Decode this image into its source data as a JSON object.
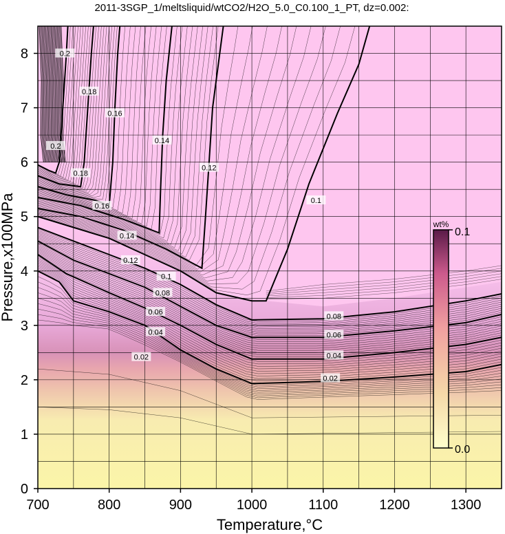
{
  "chart_data": {
    "type": "heatmap",
    "title": "2011-3SGP_1/meltsliquid/wtCO2/H2O_5.0_C0.100_1_PT, dz=0.002:",
    "xlabel": "Temperature,°C",
    "ylabel": "Pressure,x100MPa",
    "xlim": [
      700,
      1350
    ],
    "ylim": [
      0,
      8.5
    ],
    "x_ticks": [
      "700",
      "800",
      "900",
      "1000",
      "1100",
      "1200",
      "1300"
    ],
    "y_ticks": [
      "0",
      "1",
      "2",
      "3",
      "4",
      "5",
      "6",
      "7",
      "8"
    ],
    "grid": true,
    "colorbar": {
      "unit": "wt%",
      "min_label": "0.0",
      "max_label": "0.1",
      "range": [
        0.0,
        0.1
      ],
      "placement": "right-inside",
      "colors": [
        "#ffffcc",
        "#f5d8a8",
        "#f0a0a0",
        "#cc5a8c",
        "#5a1a48"
      ]
    },
    "background_color": "#fec6ef",
    "low_color": "#fbf5a8",
    "contour_interval": 0.002,
    "major_contours": [
      {
        "label": "0.02",
        "points": [
          [
            700,
            4.0
          ],
          [
            730,
            3.8
          ],
          [
            750,
            3.45
          ],
          [
            800,
            3.25
          ],
          [
            850,
            3.0
          ],
          [
            900,
            2.55
          ],
          [
            950,
            2.2
          ],
          [
            1000,
            1.93
          ],
          [
            1100,
            1.97
          ],
          [
            1200,
            2.05
          ],
          [
            1300,
            2.15
          ],
          [
            1350,
            2.28
          ]
        ],
        "label_at": [
          [
            845,
            2.42
          ],
          [
            1110,
            2.03
          ]
        ]
      },
      {
        "label": "0.04",
        "points": [
          [
            700,
            4.3
          ],
          [
            740,
            3.95
          ],
          [
            800,
            3.6
          ],
          [
            850,
            3.32
          ],
          [
            900,
            3.0
          ],
          [
            950,
            2.65
          ],
          [
            1000,
            2.38
          ],
          [
            1100,
            2.38
          ],
          [
            1200,
            2.5
          ],
          [
            1300,
            2.65
          ],
          [
            1350,
            2.78
          ]
        ],
        "label_at": [
          [
            865,
            2.88
          ],
          [
            1115,
            2.45
          ]
        ]
      },
      {
        "label": "0.06",
        "points": [
          [
            700,
            4.55
          ],
          [
            750,
            4.2
          ],
          [
            800,
            3.95
          ],
          [
            850,
            3.7
          ],
          [
            900,
            3.35
          ],
          [
            950,
            3.0
          ],
          [
            1000,
            2.78
          ],
          [
            1100,
            2.78
          ],
          [
            1200,
            2.9
          ],
          [
            1300,
            3.05
          ],
          [
            1350,
            3.2
          ]
        ],
        "label_at": [
          [
            865,
            3.25
          ],
          [
            1115,
            2.83
          ]
        ]
      },
      {
        "label": "0.08",
        "points": [
          [
            700,
            4.8
          ],
          [
            750,
            4.55
          ],
          [
            800,
            4.3
          ],
          [
            850,
            4.05
          ],
          [
            900,
            3.75
          ],
          [
            950,
            3.38
          ],
          [
            1000,
            3.1
          ],
          [
            1100,
            3.12
          ],
          [
            1200,
            3.25
          ],
          [
            1300,
            3.45
          ],
          [
            1350,
            3.58
          ]
        ],
        "label_at": [
          [
            875,
            3.6
          ],
          [
            1115,
            3.17
          ]
        ]
      },
      {
        "label": "0.1",
        "points": [
          [
            700,
            5.0
          ],
          [
            750,
            4.8
          ],
          [
            800,
            4.6
          ],
          [
            850,
            4.3
          ],
          [
            900,
            4.0
          ],
          [
            950,
            3.6
          ],
          [
            1000,
            3.45
          ],
          [
            1020,
            3.45
          ],
          [
            1050,
            4.4
          ],
          [
            1080,
            5.6
          ],
          [
            1120,
            6.9
          ],
          [
            1150,
            7.8
          ],
          [
            1165,
            8.5
          ]
        ],
        "label_at": [
          [
            880,
            3.9
          ],
          [
            1090,
            5.3
          ]
        ]
      },
      {
        "label": "0.12",
        "points": [
          [
            700,
            5.15
          ],
          [
            760,
            5.0
          ],
          [
            820,
            4.75
          ],
          [
            880,
            4.4
          ],
          [
            930,
            4.05
          ],
          [
            935,
            5.0
          ],
          [
            940,
            6.0
          ],
          [
            945,
            7.0
          ],
          [
            955,
            8.0
          ],
          [
            960,
            8.5
          ]
        ],
        "label_at": [
          [
            830,
            4.2
          ],
          [
            940,
            5.9
          ]
        ]
      },
      {
        "label": "0.14",
        "points": [
          [
            700,
            5.35
          ],
          [
            760,
            5.2
          ],
          [
            820,
            4.95
          ],
          [
            870,
            4.7
          ],
          [
            872,
            5.5
          ],
          [
            875,
            6.5
          ],
          [
            880,
            7.5
          ],
          [
            888,
            8.5
          ]
        ],
        "label_at": [
          [
            825,
            4.65
          ],
          [
            874,
            6.4
          ]
        ]
      },
      {
        "label": "0.16",
        "points": [
          [
            700,
            5.55
          ],
          [
            740,
            5.4
          ],
          [
            780,
            5.3
          ],
          [
            800,
            5.2
          ],
          [
            805,
            6.0
          ],
          [
            808,
            7.0
          ],
          [
            812,
            8.0
          ],
          [
            815,
            8.5
          ]
        ],
        "label_at": [
          [
            790,
            5.2
          ],
          [
            808,
            6.9
          ]
        ]
      },
      {
        "label": "0.18",
        "points": [
          [
            700,
            5.75
          ],
          [
            730,
            5.6
          ],
          [
            760,
            5.55
          ],
          [
            765,
            6.0
          ],
          [
            770,
            7.0
          ],
          [
            775,
            8.0
          ],
          [
            778,
            8.5
          ]
        ],
        "label_at": [
          [
            760,
            5.8
          ],
          [
            772,
            7.3
          ]
        ]
      },
      {
        "label": "0.2",
        "points": [
          [
            700,
            5.95
          ],
          [
            715,
            5.85
          ],
          [
            725,
            5.8
          ],
          [
            730,
            6.0
          ],
          [
            735,
            7.0
          ],
          [
            740,
            8.0
          ],
          [
            742,
            8.5
          ]
        ],
        "label_at": [
          [
            725,
            6.3
          ],
          [
            738,
            8.0
          ]
        ]
      }
    ]
  }
}
